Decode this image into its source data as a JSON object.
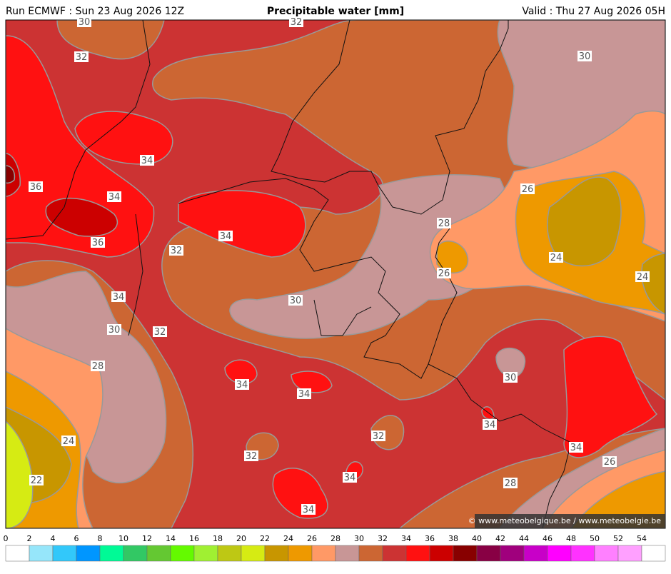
{
  "header": {
    "run": "Run ECMWF : Sun 23 Aug 2026 12Z",
    "title": "Precipitable water [mm]",
    "valid": "Valid : Thu 27 Aug 2026 05H"
  },
  "map": {
    "contour_labels": [
      "30",
      "32",
      "32",
      "30",
      "34",
      "36",
      "34",
      "26",
      "28",
      "34",
      "36",
      "32",
      "24",
      "26",
      "24",
      "34",
      "30",
      "30",
      "32",
      "28",
      "30",
      "34",
      "34",
      "34",
      "32",
      "24",
      "34",
      "32",
      "26",
      "34",
      "22",
      "28",
      "34"
    ],
    "copyright": "© www.meteobelgique.be / www.meteobelgie.be"
  },
  "colorbar": {
    "labels": [
      0,
      2,
      4,
      6,
      8,
      10,
      12,
      14,
      16,
      18,
      20,
      22,
      24,
      26,
      28,
      30,
      32,
      34,
      36,
      38,
      40,
      42,
      44,
      46,
      48,
      50,
      52,
      54
    ],
    "colors": [
      "#ffffff",
      "#96e6fa",
      "#32c8fa",
      "#0096ff",
      "#00fa96",
      "#32c864",
      "#64c832",
      "#64fa00",
      "#a0f032",
      "#bec814",
      "#d6eb13",
      "#c89600",
      "#ee9900",
      "#ff9966",
      "#c89696",
      "#cc6633",
      "#cc3333",
      "#ff1111",
      "#cc0000",
      "#880000",
      "#880044",
      "#a0007d",
      "#c800c8",
      "#ff00ff",
      "#ff32ff",
      "#ff80ff",
      "#ffa0ff",
      "#ffffff"
    ]
  }
}
